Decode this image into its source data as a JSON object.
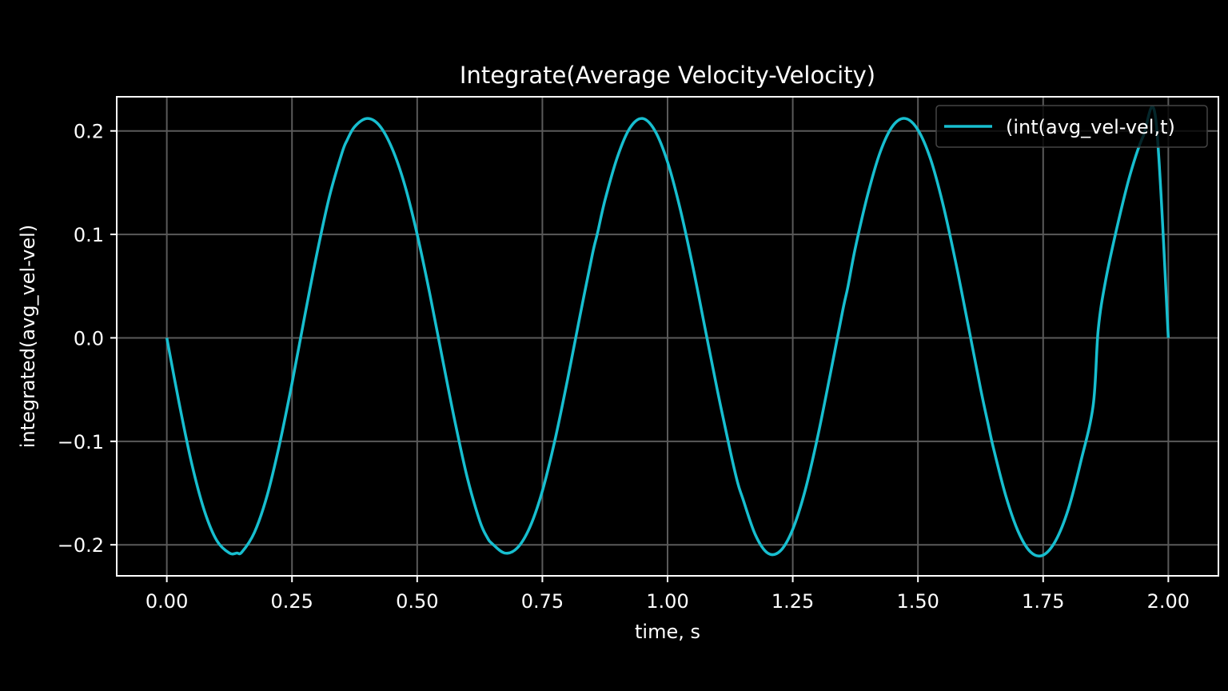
{
  "chart_data": {
    "type": "line",
    "title": "Integrate(Average Velocity-Velocity)",
    "xlabel": "time, s",
    "ylabel": "integrated(avg_vel-vel)",
    "xlim": [
      -0.1,
      2.1
    ],
    "ylim": [
      -0.23,
      0.233
    ],
    "grid": true,
    "x_ticks": [
      0.0,
      0.25,
      0.5,
      0.75,
      1.0,
      1.25,
      1.5,
      1.75,
      2.0
    ],
    "x_tick_labels": [
      "0.00",
      "0.25",
      "0.50",
      "0.75",
      "1.00",
      "1.25",
      "1.50",
      "1.75",
      "2.00"
    ],
    "y_ticks": [
      -0.2,
      -0.1,
      0.0,
      0.1,
      0.2
    ],
    "y_tick_labels": [
      "−0.2",
      "−0.1",
      "0.0",
      "0.1",
      "0.2"
    ],
    "legend_placement": "top-right",
    "series": [
      {
        "name": "(int(avg_vel-vel,t)",
        "color": "#17becf",
        "x": [
          0.0,
          0.025,
          0.05,
          0.075,
          0.1,
          0.125,
          0.14,
          0.15,
          0.175,
          0.2,
          0.225,
          0.25,
          0.275,
          0.3,
          0.325,
          0.35,
          0.36,
          0.375,
          0.4,
          0.425,
          0.45,
          0.475,
          0.5,
          0.525,
          0.55,
          0.575,
          0.6,
          0.625,
          0.64,
          0.65,
          0.675,
          0.7,
          0.725,
          0.75,
          0.775,
          0.8,
          0.825,
          0.85,
          0.86,
          0.875,
          0.9,
          0.925,
          0.95,
          0.975,
          1.0,
          1.025,
          1.05,
          1.075,
          1.1,
          1.125,
          1.14,
          1.15,
          1.175,
          1.2,
          1.225,
          1.25,
          1.275,
          1.3,
          1.325,
          1.35,
          1.36,
          1.375,
          1.4,
          1.425,
          1.45,
          1.475,
          1.5,
          1.525,
          1.55,
          1.575,
          1.6,
          1.625,
          1.64,
          1.65,
          1.675,
          1.7,
          1.725,
          1.75,
          1.775,
          1.8,
          1.825,
          1.85,
          1.86,
          1.875,
          1.9,
          1.925,
          1.95,
          1.975,
          2.0
        ],
        "y": [
          0.0,
          -0.064,
          -0.122,
          -0.167,
          -0.196,
          -0.208,
          -0.208,
          -0.207,
          -0.188,
          -0.153,
          -0.103,
          -0.044,
          0.02,
          0.082,
          0.137,
          0.179,
          0.191,
          0.204,
          0.212,
          0.205,
          0.183,
          0.148,
          0.1,
          0.043,
          -0.019,
          -0.08,
          -0.135,
          -0.177,
          -0.193,
          -0.199,
          -0.208,
          -0.203,
          -0.183,
          -0.148,
          -0.099,
          -0.041,
          0.021,
          0.081,
          0.101,
          0.133,
          0.175,
          0.203,
          0.212,
          0.2,
          0.17,
          0.125,
          0.07,
          0.009,
          -0.052,
          -0.109,
          -0.14,
          -0.155,
          -0.19,
          -0.208,
          -0.206,
          -0.185,
          -0.147,
          -0.095,
          -0.035,
          0.027,
          0.049,
          0.087,
          0.139,
          0.18,
          0.205,
          0.212,
          0.201,
          0.173,
          0.129,
          0.074,
          0.013,
          -0.049,
          -0.083,
          -0.105,
          -0.152,
          -0.187,
          -0.207,
          -0.21,
          -0.196,
          -0.166,
          -0.12,
          -0.065,
          0.008,
          0.056,
          0.112,
          0.16,
          0.195,
          0.211,
          0.0
        ]
      }
    ]
  }
}
